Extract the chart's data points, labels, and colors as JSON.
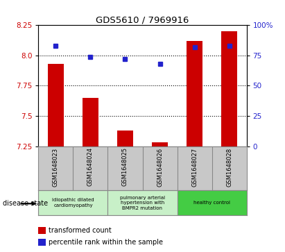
{
  "title": "GDS5610 / 7969916",
  "samples": [
    "GSM1648023",
    "GSM1648024",
    "GSM1648025",
    "GSM1648026",
    "GSM1648027",
    "GSM1648028"
  ],
  "transformed_count": [
    7.93,
    7.65,
    7.38,
    7.28,
    8.12,
    8.2
  ],
  "percentile_rank": [
    83,
    74,
    72,
    68,
    82,
    83
  ],
  "bar_color": "#cc0000",
  "dot_color": "#2222cc",
  "ylim_left": [
    7.25,
    8.25
  ],
  "ylim_right": [
    0,
    100
  ],
  "yticks_left": [
    7.25,
    7.5,
    7.75,
    8.0,
    8.25
  ],
  "yticks_right": [
    0,
    25,
    50,
    75,
    100
  ],
  "ytick_labels_right": [
    "0",
    "25",
    "50",
    "75",
    "100%"
  ],
  "grid_lines": [
    8.0,
    7.75,
    7.5
  ],
  "bar_bottom": 7.25,
  "background_color": "#c8c8c8",
  "plot_bg": "#ffffff",
  "group1_color": "#c8f0c8",
  "group2_color": "#c8f0c8",
  "group3_color": "#44cc44",
  "disease_state_label": "disease state",
  "legend_bar_label": "transformed count",
  "legend_dot_label": "percentile rank within the sample"
}
